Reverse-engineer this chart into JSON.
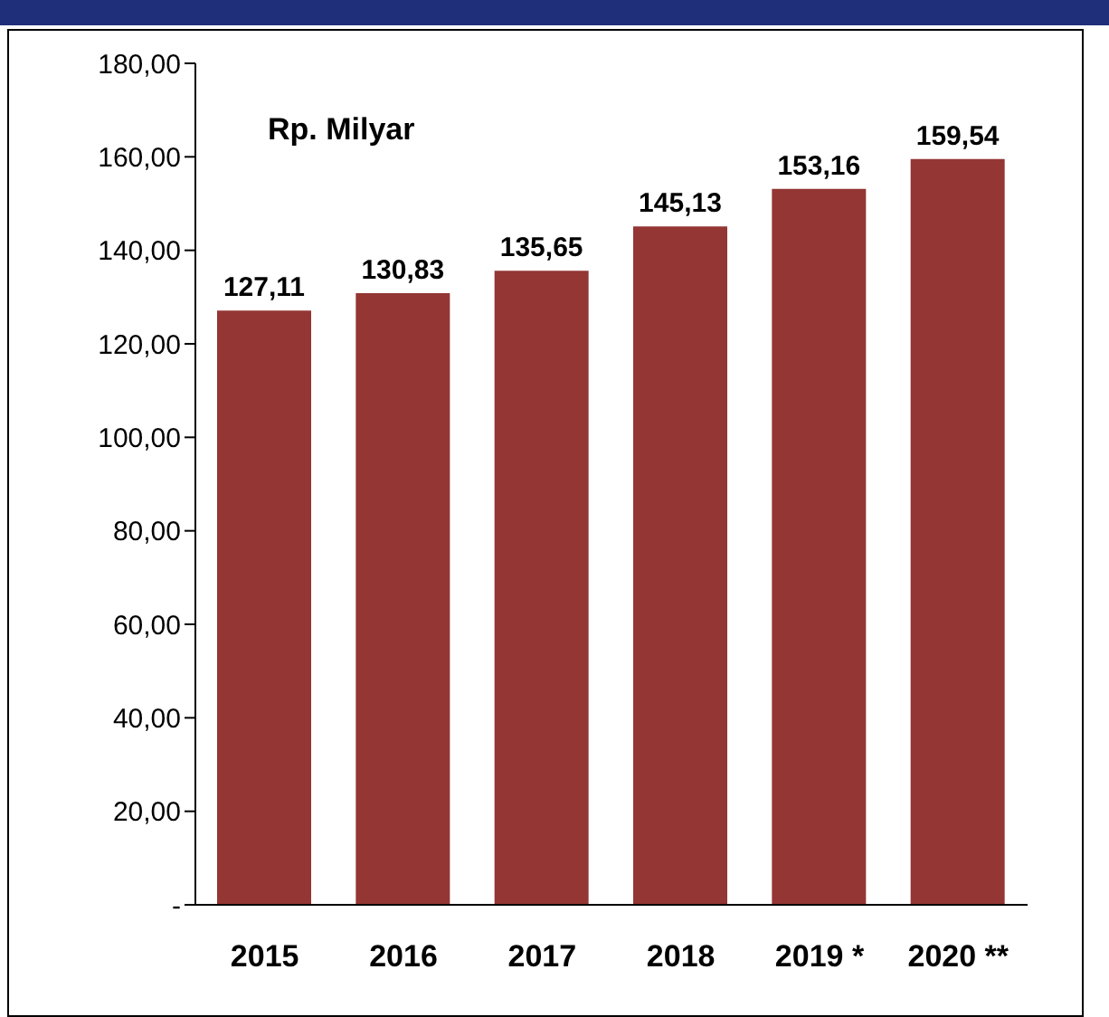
{
  "chart_data": {
    "type": "bar",
    "categories": [
      "2015",
      "2016",
      "2017",
      "2018",
      "2019 *",
      "2020 **"
    ],
    "values": [
      127.11,
      130.83,
      135.65,
      145.13,
      153.16,
      159.54
    ],
    "value_labels": [
      "127,11",
      "130,83",
      "135,65",
      "145,13",
      "153,16",
      "159,54"
    ],
    "color": "#943634",
    "ylim": [
      0,
      180
    ],
    "yticks": [
      {
        "value": 0,
        "label": "-"
      },
      {
        "value": 20,
        "label": "20,00"
      },
      {
        "value": 40,
        "label": "40,00"
      },
      {
        "value": 60,
        "label": "60,00"
      },
      {
        "value": 80,
        "label": "80,00"
      },
      {
        "value": 100,
        "label": "100,00"
      },
      {
        "value": 120,
        "label": "120,00"
      },
      {
        "value": 140,
        "label": "140,00"
      },
      {
        "value": 160,
        "label": "160,00"
      },
      {
        "value": 180,
        "label": "180,00"
      }
    ],
    "annotations": [
      "Rp. Milyar"
    ],
    "grid": false,
    "legend": false
  }
}
